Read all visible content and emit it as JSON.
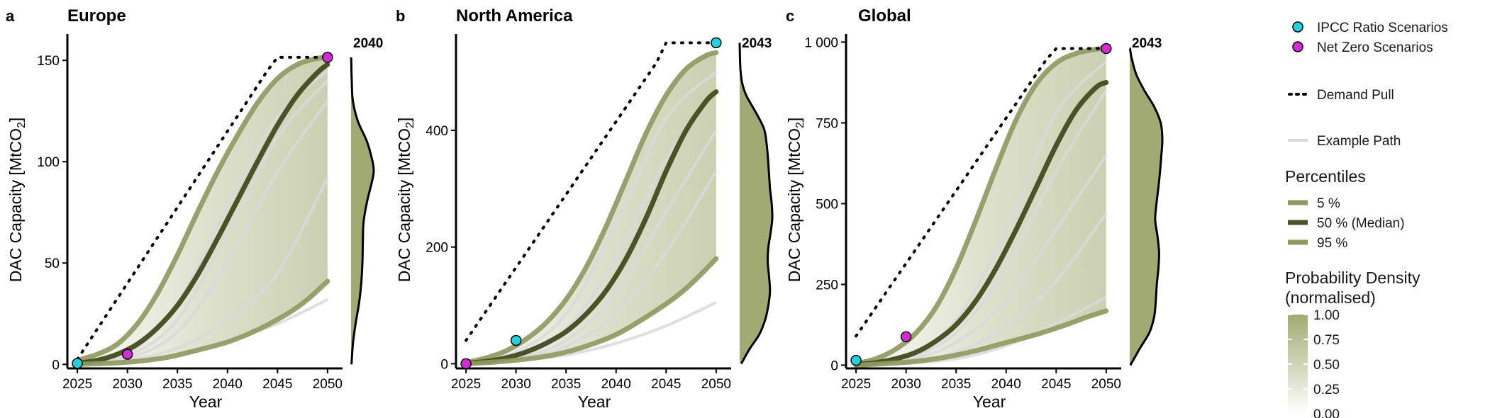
{
  "chart_data": [
    {
      "type": "line",
      "panel_letter": "a",
      "title": "Europe",
      "xlabel": "Year",
      "ylabel_main": "DAC Capacity [MtCO",
      "ylabel_sub": "2",
      "ylabel_end": "]",
      "xlim": [
        2024,
        2051.5
      ],
      "ylim": [
        -2,
        163
      ],
      "x_ticks": [
        2025,
        2030,
        2035,
        2040,
        2045,
        2050
      ],
      "x_tick_labels": [
        "2025",
        "2030",
        "2035",
        "2040",
        "2045",
        "2050"
      ],
      "y_ticks": [
        0,
        50,
        100,
        150
      ],
      "y_tick_labels": [
        "0",
        "50",
        "100",
        "150"
      ],
      "density_year_label": "2040",
      "density_profile": [
        [
          0,
          0.02
        ],
        [
          10,
          0.08
        ],
        [
          20,
          0.2
        ],
        [
          30,
          0.35
        ],
        [
          40,
          0.45
        ],
        [
          50,
          0.5
        ],
        [
          60,
          0.52
        ],
        [
          70,
          0.55
        ],
        [
          80,
          0.7
        ],
        [
          90,
          0.92
        ],
        [
          95,
          1.0
        ],
        [
          100,
          0.95
        ],
        [
          110,
          0.7
        ],
        [
          120,
          0.3
        ],
        [
          130,
          0.08
        ],
        [
          140,
          0.03
        ],
        [
          150,
          0.01
        ]
      ],
      "demand_pull": {
        "name": "Demand Pull",
        "x": [
          2025,
          2026,
          2027,
          2028,
          2029,
          2030,
          2031,
          2032,
          2033,
          2034,
          2035,
          2036,
          2037,
          2038,
          2039,
          2040,
          2041,
          2042,
          2043,
          2044,
          2045,
          2046,
          2047,
          2048,
          2049,
          2050
        ],
        "y": [
          2.5,
          10,
          17.5,
          25,
          32.5,
          40,
          47.5,
          55,
          62.5,
          70,
          77.5,
          85,
          92.5,
          100,
          107.5,
          115,
          122.5,
          130,
          137.5,
          145,
          151.5,
          151.5,
          151.5,
          151.5,
          151.5,
          151.5
        ]
      },
      "percentiles": [
        {
          "name": "95 %",
          "color": "#8f9a62",
          "x": [
            2025,
            2027,
            2029,
            2031,
            2033,
            2035,
            2037,
            2039,
            2041,
            2043,
            2045,
            2047,
            2049,
            2050
          ],
          "y": [
            2,
            5,
            10,
            20,
            35,
            54,
            75,
            95,
            113,
            129,
            141,
            148,
            151,
            151.5
          ]
        },
        {
          "name": "50 % (Median)",
          "color": "#4a5228",
          "x": [
            2025,
            2027,
            2029,
            2031,
            2033,
            2035,
            2037,
            2039,
            2041,
            2043,
            2045,
            2047,
            2049,
            2050
          ],
          "y": [
            0.5,
            2,
            5,
            10,
            18,
            29,
            44,
            62,
            81,
            100,
            118,
            133,
            144,
            148
          ]
        },
        {
          "name": "5 %",
          "color": "#8f9a62",
          "x": [
            2025,
            2028,
            2031,
            2034,
            2037,
            2040,
            2043,
            2046,
            2048,
            2050
          ],
          "y": [
            0,
            0.5,
            1.5,
            3.5,
            7,
            11,
            17,
            25,
            32,
            41
          ]
        }
      ],
      "example_paths": [
        {
          "x": [
            2025,
            2030,
            2035,
            2040,
            2045,
            2050
          ],
          "y": [
            0,
            2,
            8,
            22,
            45,
            92
          ]
        },
        {
          "x": [
            2025,
            2030,
            2035,
            2040,
            2045,
            2050
          ],
          "y": [
            0,
            3,
            16,
            50,
            95,
            130
          ]
        },
        {
          "x": [
            2025,
            2030,
            2035,
            2040,
            2045,
            2050
          ],
          "y": [
            0,
            5,
            30,
            78,
            122,
            145
          ]
        },
        {
          "x": [
            2025,
            2030,
            2035,
            2040,
            2045,
            2050
          ],
          "y": [
            0,
            1,
            5,
            12,
            20,
            32
          ]
        },
        {
          "x": [
            2025,
            2030,
            2035,
            2040,
            2045,
            2050
          ],
          "y": [
            0,
            4,
            22,
            65,
            112,
            140
          ]
        }
      ],
      "ipcc_points": [
        {
          "x": 2025,
          "y": 0.5
        }
      ],
      "netzero_points": [
        {
          "x": 2030,
          "y": 5
        },
        {
          "x": 2050,
          "y": 151.5
        }
      ]
    },
    {
      "type": "line",
      "panel_letter": "b",
      "title": "North America",
      "xlabel": "Year",
      "ylabel_main": "DAC Capacity [MtCO",
      "ylabel_sub": "2",
      "ylabel_end": "]",
      "xlim": [
        2024,
        2051.5
      ],
      "ylim": [
        -8,
        565
      ],
      "x_ticks": [
        2025,
        2030,
        2035,
        2040,
        2045,
        2050
      ],
      "x_tick_labels": [
        "2025",
        "2030",
        "2035",
        "2040",
        "2045",
        "2050"
      ],
      "y_ticks": [
        0,
        200,
        400
      ],
      "y_tick_labels": [
        "0",
        "200",
        "400"
      ],
      "density_year_label": "2043",
      "density_profile": [
        [
          0,
          0.05
        ],
        [
          25,
          0.3
        ],
        [
          50,
          0.6
        ],
        [
          75,
          0.78
        ],
        [
          100,
          0.88
        ],
        [
          125,
          0.93
        ],
        [
          150,
          0.9
        ],
        [
          175,
          0.86
        ],
        [
          200,
          0.88
        ],
        [
          225,
          0.95
        ],
        [
          250,
          1.0
        ],
        [
          275,
          0.98
        ],
        [
          300,
          0.93
        ],
        [
          325,
          0.9
        ],
        [
          350,
          0.87
        ],
        [
          375,
          0.83
        ],
        [
          400,
          0.76
        ],
        [
          420,
          0.6
        ],
        [
          440,
          0.4
        ],
        [
          460,
          0.2
        ],
        [
          480,
          0.08
        ],
        [
          500,
          0.03
        ],
        [
          520,
          0.01
        ]
      ],
      "demand_pull": {
        "name": "Demand Pull",
        "x": [
          2025,
          2026,
          2027,
          2028,
          2029,
          2030,
          2031,
          2032,
          2033,
          2034,
          2035,
          2036,
          2037,
          2038,
          2039,
          2040,
          2041,
          2042,
          2043,
          2044,
          2045,
          2046,
          2047,
          2048,
          2049,
          2050
        ],
        "y": [
          40,
          65,
          90,
          115,
          140,
          165,
          190,
          215,
          240,
          265,
          290,
          315,
          340,
          365,
          390,
          415,
          440,
          465,
          490,
          515,
          550,
          550,
          550,
          550,
          550,
          550
        ]
      },
      "percentiles": [
        {
          "name": "95 %",
          "color": "#8f9a62",
          "x": [
            2025,
            2027,
            2029,
            2031,
            2033,
            2035,
            2037,
            2039,
            2041,
            2043,
            2045,
            2047,
            2049,
            2050
          ],
          "y": [
            2,
            10,
            22,
            42,
            70,
            110,
            165,
            235,
            315,
            395,
            460,
            505,
            528,
            533
          ]
        },
        {
          "name": "50 % (Median)",
          "color": "#4a5228",
          "x": [
            2025,
            2027,
            2029,
            2031,
            2033,
            2035,
            2037,
            2039,
            2041,
            2043,
            2045,
            2047,
            2049,
            2050
          ],
          "y": [
            1,
            4,
            10,
            20,
            35,
            55,
            85,
            125,
            180,
            250,
            330,
            400,
            450,
            466
          ]
        },
        {
          "name": "5 %",
          "color": "#8f9a62",
          "x": [
            2025,
            2028,
            2031,
            2034,
            2037,
            2040,
            2043,
            2046,
            2048,
            2050
          ],
          "y": [
            0,
            3,
            8,
            16,
            30,
            50,
            80,
            115,
            145,
            180
          ]
        }
      ],
      "example_paths": [
        {
          "x": [
            2025,
            2030,
            2035,
            2040,
            2045,
            2050
          ],
          "y": [
            0,
            5,
            15,
            35,
            65,
            105
          ]
        },
        {
          "x": [
            2025,
            2030,
            2035,
            2040,
            2045,
            2050
          ],
          "y": [
            0,
            10,
            40,
            120,
            260,
            400
          ]
        },
        {
          "x": [
            2025,
            2030,
            2035,
            2040,
            2045,
            2050
          ],
          "y": [
            0,
            15,
            60,
            180,
            350,
            470
          ]
        },
        {
          "x": [
            2025,
            2030,
            2035,
            2040,
            2045,
            2050
          ],
          "y": [
            0,
            20,
            85,
            240,
            420,
            500
          ]
        },
        {
          "x": [
            2025,
            2030,
            2035,
            2040,
            2045,
            2050
          ],
          "y": [
            0,
            8,
            30,
            85,
            190,
            330
          ]
        }
      ],
      "ipcc_points": [
        {
          "x": 2030,
          "y": 40
        },
        {
          "x": 2050,
          "y": 550
        }
      ],
      "netzero_points": [
        {
          "x": 2025,
          "y": 0
        }
      ]
    },
    {
      "type": "line",
      "panel_letter": "c",
      "title": "Global",
      "xlabel": "Year",
      "ylabel_main": "DAC Capacity [MtCO",
      "ylabel_sub": "2",
      "ylabel_end": "]",
      "xlim": [
        2024,
        2051.5
      ],
      "ylim": [
        -10,
        1025
      ],
      "x_ticks": [
        2025,
        2030,
        2035,
        2040,
        2045,
        2050
      ],
      "x_tick_labels": [
        "2025",
        "2030",
        "2035",
        "2040",
        "2045",
        "2050"
      ],
      "y_ticks": [
        0,
        250,
        500,
        750,
        1000
      ],
      "y_tick_labels": [
        "0",
        "250",
        "500",
        "750",
        "1 000"
      ],
      "density_year_label": "2043",
      "density_profile": [
        [
          0,
          0.02
        ],
        [
          50,
          0.3
        ],
        [
          100,
          0.6
        ],
        [
          150,
          0.75
        ],
        [
          200,
          0.8
        ],
        [
          250,
          0.83
        ],
        [
          300,
          0.88
        ],
        [
          350,
          0.9
        ],
        [
          400,
          0.85
        ],
        [
          450,
          0.78
        ],
        [
          500,
          0.82
        ],
        [
          550,
          0.88
        ],
        [
          600,
          0.93
        ],
        [
          650,
          0.97
        ],
        [
          700,
          1.0
        ],
        [
          750,
          0.95
        ],
        [
          800,
          0.75
        ],
        [
          850,
          0.45
        ],
        [
          900,
          0.2
        ],
        [
          950,
          0.06
        ],
        [
          980,
          0.01
        ]
      ],
      "demand_pull": {
        "name": "Demand Pull",
        "x": [
          2025,
          2026,
          2027,
          2028,
          2029,
          2030,
          2031,
          2032,
          2033,
          2034,
          2035,
          2036,
          2037,
          2038,
          2039,
          2040,
          2041,
          2042,
          2043,
          2044,
          2045,
          2046,
          2047,
          2048,
          2049,
          2050
        ],
        "y": [
          90,
          135,
          180,
          225,
          270,
          315,
          360,
          405,
          450,
          495,
          540,
          585,
          630,
          675,
          720,
          765,
          810,
          855,
          900,
          945,
          980,
          980,
          980,
          980,
          980,
          980
        ]
      },
      "percentiles": [
        {
          "name": "95 %",
          "color": "#8f9a62",
          "x": [
            2025,
            2027,
            2029,
            2031,
            2033,
            2035,
            2037,
            2039,
            2041,
            2043,
            2045,
            2047,
            2049,
            2050
          ],
          "y": [
            5,
            20,
            50,
            100,
            180,
            300,
            450,
            610,
            760,
            870,
            935,
            965,
            978,
            980
          ]
        },
        {
          "name": "50 % (Median)",
          "color": "#4a5228",
          "x": [
            2025,
            2027,
            2029,
            2031,
            2033,
            2035,
            2037,
            2039,
            2041,
            2043,
            2045,
            2047,
            2049,
            2050
          ],
          "y": [
            2,
            8,
            20,
            40,
            75,
            125,
            200,
            300,
            420,
            550,
            680,
            790,
            860,
            875
          ]
        },
        {
          "name": "5 %",
          "color": "#8f9a62",
          "x": [
            2025,
            2028,
            2031,
            2034,
            2037,
            2040,
            2043,
            2046,
            2048,
            2050
          ],
          "y": [
            0,
            5,
            12,
            25,
            45,
            70,
            95,
            125,
            148,
            168
          ]
        }
      ],
      "example_paths": [
        {
          "x": [
            2025,
            2030,
            2035,
            2040,
            2045,
            2050
          ],
          "y": [
            0,
            10,
            40,
            120,
            260,
            470
          ]
        },
        {
          "x": [
            2025,
            2030,
            2035,
            2040,
            2045,
            2050
          ],
          "y": [
            0,
            20,
            100,
            300,
            600,
            850
          ]
        },
        {
          "x": [
            2025,
            2030,
            2035,
            2040,
            2045,
            2050
          ],
          "y": [
            0,
            5,
            20,
            60,
            130,
            210
          ]
        },
        {
          "x": [
            2025,
            2030,
            2035,
            2040,
            2045,
            2050
          ],
          "y": [
            0,
            30,
            140,
            420,
            780,
            940
          ]
        },
        {
          "x": [
            2025,
            2030,
            2035,
            2040,
            2045,
            2050
          ],
          "y": [
            0,
            15,
            70,
            200,
            420,
            650
          ]
        }
      ],
      "ipcc_points": [
        {
          "x": 2025,
          "y": 15
        }
      ],
      "netzero_points": [
        {
          "x": 2030,
          "y": 88
        },
        {
          "x": 2050,
          "y": 980
        }
      ]
    }
  ],
  "legend": {
    "ipcc_label": "IPCC Ratio Scenarios",
    "ipcc_color": "#1fd4dd",
    "netzero_label": "Net Zero Scenarios",
    "netzero_color": "#d62ad6",
    "demand_label": "Demand Pull",
    "example_label": "Example Path",
    "example_color": "#d9d9d9",
    "percentiles_title": "Percentiles",
    "p5_label": "5 %",
    "p5_color": "#8f9a62",
    "p50_label": "50 % (Median)",
    "p50_color": "#4a5228",
    "p95_label": "95 %",
    "p95_color": "#8f9a62",
    "density_title_line1": "Probability Density",
    "density_title_line2": "(normalised)",
    "density_ticks": [
      "1.00",
      "0.75",
      "0.50",
      "0.25",
      "0.00"
    ],
    "density_color": "#a1aa72"
  }
}
